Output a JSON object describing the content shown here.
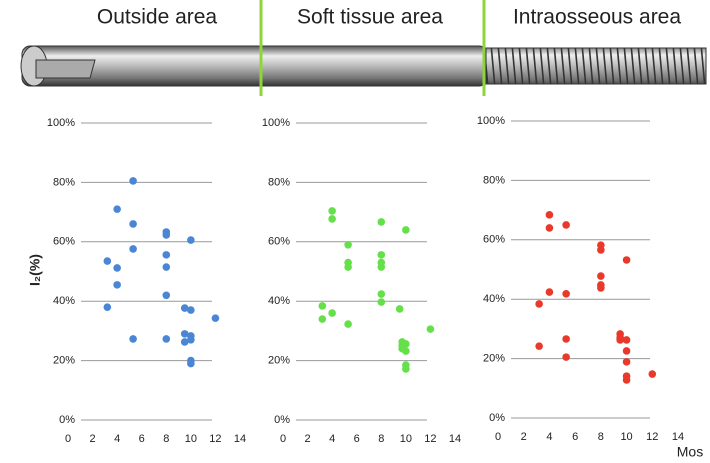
{
  "chart_data": [
    {
      "type": "scatter",
      "title": "Outside area",
      "y_label": "I₂(%)",
      "color": "#4a86d4",
      "grid": true,
      "x": [
        3.2,
        3.2,
        4,
        4,
        4,
        5.3,
        5.3,
        5.3,
        5.3,
        8,
        8,
        8,
        8,
        8,
        8,
        9.5,
        9.5,
        9.5,
        10,
        10,
        10,
        10,
        10,
        10,
        12
      ],
      "values": [
        53.5,
        38,
        71,
        51.2,
        45.5,
        80.5,
        66,
        57.6,
        27.3,
        63.3,
        62.3,
        55.6,
        51.5,
        42,
        27.3,
        37.7,
        29,
        26.3,
        60.6,
        37,
        28.3,
        27,
        20,
        19,
        34.3
      ],
      "xlim": [
        0,
        14
      ],
      "xticks": [
        0,
        2,
        4,
        6,
        8,
        10,
        12,
        14
      ],
      "ylim": [
        0,
        100
      ],
      "yticks": [
        {
          "value": 0,
          "label": "0%"
        },
        {
          "value": 20,
          "label": "20%"
        },
        {
          "value": 40,
          "label": "40%"
        },
        {
          "value": 60,
          "label": "60%"
        },
        {
          "value": 80,
          "label": "80%"
        },
        {
          "value": 100,
          "label": "100%"
        }
      ]
    },
    {
      "type": "scatter",
      "title": "Soft tissue area",
      "color": "#66e04a",
      "grid": true,
      "x": [
        3.2,
        3.2,
        4,
        4,
        4,
        5.3,
        5.3,
        5.3,
        5.3,
        8,
        8,
        8,
        8,
        8,
        8,
        9.5,
        9.7,
        9.7,
        9.7,
        10,
        10,
        10,
        10,
        10,
        12
      ],
      "values": [
        38.4,
        34,
        70.4,
        67.7,
        36,
        59,
        53,
        51.5,
        32.3,
        66.7,
        55.6,
        53,
        51.5,
        42.4,
        39.7,
        37.4,
        26.3,
        25,
        24,
        64,
        25.6,
        23.2,
        18.5,
        17.2,
        30.6
      ],
      "xlim": [
        0,
        14
      ],
      "xticks": [
        0,
        2,
        4,
        6,
        8,
        10,
        12,
        14
      ],
      "ylim": [
        0,
        100
      ],
      "yticks": [
        {
          "value": 0,
          "label": "0%"
        },
        {
          "value": 20,
          "label": "20%"
        },
        {
          "value": 40,
          "label": "40%"
        },
        {
          "value": 60,
          "label": "60%"
        },
        {
          "value": 80,
          "label": "80%"
        },
        {
          "value": 100,
          "label": "100%"
        }
      ]
    },
    {
      "type": "scatter",
      "title": "Intraosseous area",
      "x_label": "Mos",
      "color": "#e8392a",
      "grid": true,
      "x": [
        3.2,
        3.2,
        4,
        4,
        4,
        5.3,
        5.3,
        5.3,
        5.3,
        8,
        8,
        8,
        8,
        8,
        9.5,
        9.5,
        9.5,
        10,
        10,
        10,
        10,
        10,
        10,
        12
      ],
      "values": [
        38.4,
        24.2,
        68.4,
        64,
        42.4,
        65,
        41.8,
        26.6,
        20.5,
        58.2,
        56.6,
        47.8,
        44.8,
        43.8,
        28.3,
        27,
        26.3,
        53.2,
        26.3,
        22.6,
        18.9,
        14.1,
        12.8,
        14.8
      ],
      "xlim": [
        0,
        14
      ],
      "xticks": [
        0,
        2,
        4,
        6,
        8,
        10,
        12,
        14
      ],
      "ylim": [
        0,
        100
      ],
      "yticks": [
        {
          "value": 0,
          "label": "0%"
        },
        {
          "value": 20,
          "label": "20%"
        },
        {
          "value": 40,
          "label": "40%"
        },
        {
          "value": 60,
          "label": "60%"
        },
        {
          "value": 80,
          "label": "80%"
        },
        {
          "value": 100,
          "label": "100%"
        }
      ]
    }
  ]
}
